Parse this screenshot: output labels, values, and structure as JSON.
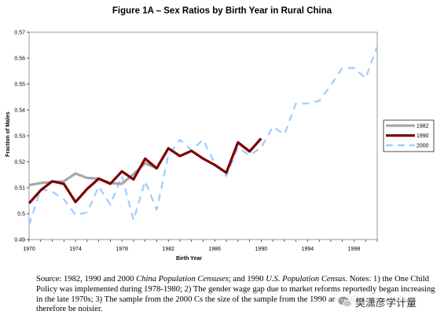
{
  "chart_data": {
    "type": "line",
    "title": "Figure 1A – Sex Ratios by Birth Year in Rural China",
    "xlabel": "Birth Year",
    "ylabel": "Fraction of Males",
    "xlim": [
      1970,
      2000
    ],
    "ylim": [
      0.49,
      0.57
    ],
    "xticks": [
      "1970",
      "1974",
      "1978",
      "1982",
      "1986",
      "1990",
      "1994",
      "1998"
    ],
    "yticks": [
      "0.49",
      "0.5",
      "0.51",
      "0.52",
      "0.53",
      "0.54",
      "0.55",
      "0.56",
      "0.57"
    ],
    "grid": false,
    "legend_position": "right",
    "series": [
      {
        "name": "1982",
        "color": "#a6a6a6",
        "style": "solid-thick",
        "x": [
          1970,
          1971,
          1972,
          1973,
          1974,
          1975,
          1976,
          1977,
          1978,
          1979,
          1980,
          1981
        ],
        "y": [
          0.511,
          0.5118,
          0.5122,
          0.5125,
          0.5155,
          0.5138,
          0.5135,
          0.5118,
          0.5115,
          0.5152,
          0.5195,
          0.5175
        ]
      },
      {
        "name": "1990",
        "color": "#7b0000",
        "style": "solid-thick",
        "x": [
          1970,
          1971,
          1972,
          1973,
          1974,
          1975,
          1976,
          1977,
          1978,
          1979,
          1980,
          1981,
          1982,
          1983,
          1984,
          1985,
          1986,
          1987,
          1988,
          1989,
          1990
        ],
        "y": [
          0.504,
          0.509,
          0.5125,
          0.5115,
          0.5045,
          0.5095,
          0.5135,
          0.5115,
          0.5163,
          0.5132,
          0.5212,
          0.5175,
          0.5252,
          0.5222,
          0.5242,
          0.5212,
          0.5188,
          0.5158,
          0.5275,
          0.524,
          0.529
        ]
      },
      {
        "name": "2000",
        "color": "#99ccff",
        "style": "dashed",
        "x": [
          1970,
          1971,
          1972,
          1973,
          1974,
          1975,
          1976,
          1977,
          1978,
          1979,
          1980,
          1981,
          1982,
          1983,
          1984,
          1985,
          1986,
          1987,
          1988,
          1989,
          1990,
          1991,
          1992,
          1993,
          1994,
          1995,
          1996,
          1997,
          1998,
          1999,
          2000
        ],
        "y": [
          0.4955,
          0.5095,
          0.5085,
          0.5055,
          0.4995,
          0.5005,
          0.5105,
          0.5035,
          0.5145,
          0.4975,
          0.5125,
          0.5015,
          0.5225,
          0.5285,
          0.5245,
          0.5285,
          0.5195,
          0.5145,
          0.5255,
          0.5225,
          0.5255,
          0.5335,
          0.5305,
          0.5425,
          0.5425,
          0.5435,
          0.5495,
          0.5562,
          0.5562,
          0.5522,
          0.5645
        ]
      }
    ]
  },
  "note": {
    "p1": "Source: 1982, 1990 and 2000 ",
    "i1": "China Population Censuses",
    "p2": "; and 1990 ",
    "i2": "U.S. Population Census",
    "p3": ". Notes: 1) the One Child Policy was implemented during 1978-1980; 2) The gender wage gap due to market reforms reportedly began increasing in the late 1970s; 3) The sample from the 2000 C",
    "p4": "s the size of the sample from the 1990 and 1982 Census, and will therefore be noisier."
  },
  "watermark": {
    "text": "樊潇彦学计量"
  }
}
